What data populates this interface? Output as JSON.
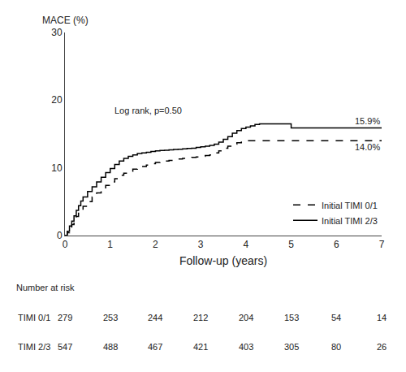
{
  "chart_data": {
    "type": "step",
    "xlabel": "Follow-up (years)",
    "ylabel": "MACE (%)",
    "xlim": [
      0,
      7
    ],
    "ylim": [
      0,
      30
    ],
    "xticks": [
      0,
      1,
      2,
      3,
      4,
      5,
      6,
      7
    ],
    "yticks": [
      0,
      10,
      20,
      30
    ],
    "grid": false,
    "legend": "lower right",
    "color": "#000000",
    "series": [
      {
        "name": "Initial TIMI 0/1",
        "line_style": "dashed",
        "x": [
          0,
          0.05,
          0.1,
          0.15,
          0.2,
          0.25,
          0.3,
          0.35,
          0.4,
          0.5,
          0.6,
          0.7,
          0.8,
          0.9,
          1.0,
          1.1,
          1.2,
          1.3,
          1.4,
          1.5,
          1.6,
          1.7,
          1.8,
          1.9,
          2.0,
          2.1,
          2.2,
          2.3,
          2.4,
          2.5,
          2.6,
          2.7,
          2.8,
          2.9,
          3.0,
          3.1,
          3.2,
          3.3,
          3.4,
          3.5,
          3.6,
          3.7,
          3.8,
          3.9,
          4.0,
          4.5,
          5.0,
          5.5,
          6.0,
          6.5,
          7.0
        ],
        "values": [
          0,
          0.4,
          1.0,
          1.6,
          2.2,
          2.8,
          3.3,
          3.8,
          4.3,
          5.0,
          5.7,
          6.3,
          6.9,
          7.4,
          7.9,
          8.4,
          8.9,
          9.2,
          9.5,
          9.8,
          10.0,
          10.2,
          10.4,
          10.6,
          10.8,
          10.9,
          11.0,
          11.1,
          11.2,
          11.3,
          11.4,
          11.5,
          11.55,
          11.6,
          11.7,
          11.8,
          11.9,
          12.2,
          12.5,
          12.9,
          13.2,
          13.5,
          13.7,
          14.0,
          14.0,
          14.0,
          14.0,
          14.0,
          14.0,
          14.0,
          14.0
        ]
      },
      {
        "name": "Initial TIMI 2/3",
        "line_style": "solid",
        "x": [
          0,
          0.05,
          0.1,
          0.15,
          0.2,
          0.25,
          0.3,
          0.35,
          0.4,
          0.5,
          0.6,
          0.7,
          0.8,
          0.9,
          1.0,
          1.1,
          1.2,
          1.3,
          1.4,
          1.5,
          1.6,
          1.7,
          1.8,
          1.9,
          2.0,
          2.1,
          2.2,
          2.3,
          2.4,
          2.5,
          2.6,
          2.7,
          2.8,
          2.9,
          3.0,
          3.1,
          3.2,
          3.3,
          3.4,
          3.5,
          3.6,
          3.7,
          3.8,
          3.9,
          4.0,
          4.1,
          4.2,
          4.3,
          4.5,
          5.0,
          5.5,
          6.0,
          6.5,
          7.0
        ],
        "values": [
          0,
          0.6,
          1.4,
          2.1,
          2.9,
          3.7,
          4.4,
          5.1,
          5.7,
          6.5,
          7.2,
          7.9,
          8.6,
          9.3,
          9.9,
          10.5,
          11.0,
          11.4,
          11.7,
          11.9,
          12.1,
          12.2,
          12.3,
          12.4,
          12.5,
          12.55,
          12.6,
          12.65,
          12.7,
          12.75,
          12.8,
          12.85,
          12.9,
          13.0,
          13.1,
          13.2,
          13.3,
          13.5,
          13.8,
          14.2,
          14.6,
          15.1,
          15.5,
          15.8,
          16.0,
          16.2,
          16.4,
          16.5,
          16.5,
          15.9,
          15.9,
          15.9,
          15.9,
          15.9
        ]
      }
    ],
    "annotations": [
      {
        "text": "Log rank, p=0.50",
        "x": 1.05,
        "y": 17.5
      },
      {
        "text": "15.9%",
        "y": 15.9
      },
      {
        "text": "14.0%",
        "y": 14.0
      }
    ],
    "number_at_risk": {
      "header": "Number at risk",
      "times": [
        0,
        1,
        2,
        3,
        4,
        5,
        6,
        7
      ],
      "rows": [
        {
          "name": "TIMI 0/1",
          "values": [
            279,
            253,
            244,
            212,
            204,
            153,
            54,
            14
          ]
        },
        {
          "name": "TIMI 2/3",
          "values": [
            547,
            488,
            467,
            421,
            403,
            305,
            80,
            26
          ]
        }
      ]
    }
  }
}
